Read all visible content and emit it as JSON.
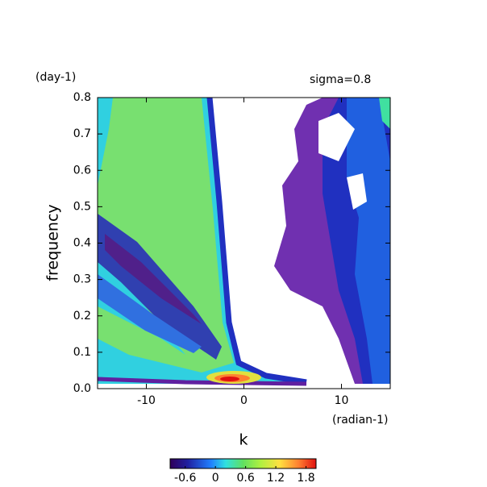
{
  "chart_data": {
    "type": "contour",
    "title": "sigma=0.8",
    "y_unit": "(day-1)",
    "x_unit": "(radian-1)",
    "x_label": "k",
    "y_label": "frequency",
    "xlim": [
      -15,
      15
    ],
    "xticks": [
      -10,
      0,
      10
    ],
    "ylim": [
      0,
      0.8
    ],
    "yticks": [
      {
        "value": 0,
        "label": "0.0"
      },
      0.1,
      0.2,
      0.3,
      0.4,
      0.5,
      0.6,
      0.7,
      0.8
    ],
    "clim": [
      -0.9,
      2.0
    ],
    "cticks": [
      -0.6,
      0,
      0.6,
      1.2,
      1.8
    ]
  }
}
